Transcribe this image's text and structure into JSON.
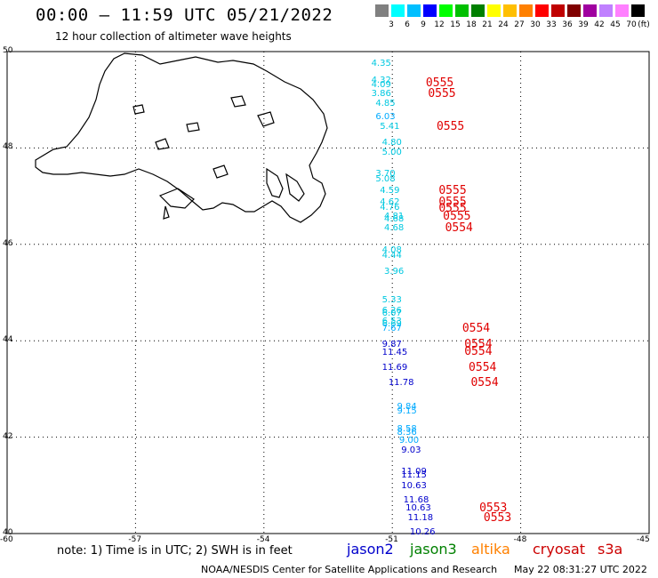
{
  "header": {
    "title": "00:00 – 11:59 UTC 05/21/2022",
    "subtitle": "12 hour collection of altimeter wave heights"
  },
  "colorbar": {
    "unit": "(ft)",
    "colors": [
      "#808080",
      "#00ffff",
      "#00bfff",
      "#0000ff",
      "#00ff00",
      "#00c000",
      "#008000",
      "#ffff00",
      "#ffbf00",
      "#ff8000",
      "#ff0000",
      "#c00000",
      "#800000",
      "#a000a0",
      "#c080ff",
      "#ff80ff",
      "#000000"
    ],
    "labels": [
      "3",
      "6",
      "9",
      "12",
      "15",
      "18",
      "21",
      "24",
      "27",
      "30",
      "33",
      "36",
      "39",
      "42",
      "45",
      "70"
    ]
  },
  "axes": {
    "lat_labels": [
      "50",
      "48",
      "46",
      "44",
      "42",
      "40"
    ],
    "lon_labels": [
      "-60",
      "-57",
      "-54",
      "-51",
      "-48",
      "-45"
    ]
  },
  "observations": [
    {
      "v": "4.35",
      "c": "#00c8e0",
      "lat": 49.74,
      "lon": -51.2
    },
    {
      "v": "4.32",
      "c": "#00c8e0",
      "lat": 49.4,
      "lon": -51.2
    },
    {
      "v": "4.09",
      "c": "#00c8e0",
      "lat": 49.3,
      "lon": -51.2
    },
    {
      "v": "3.86",
      "c": "#00c8e0",
      "lat": 49.12,
      "lon": -51.2
    },
    {
      "v": "4.85",
      "c": "#00c8e0",
      "lat": 48.92,
      "lon": -51.1
    },
    {
      "v": "6.03",
      "c": "#00aaff",
      "lat": 48.64,
      "lon": -51.1
    },
    {
      "v": "5.41",
      "c": "#00c8e0",
      "lat": 48.44,
      "lon": -51.0
    },
    {
      "v": "4.80",
      "c": "#00c8e0",
      "lat": 48.1,
      "lon": -50.95
    },
    {
      "v": "5.00",
      "c": "#00c8e0",
      "lat": 47.9,
      "lon": -50.95
    },
    {
      "v": "3.70",
      "c": "#00c8e0",
      "lat": 47.46,
      "lon": -51.1
    },
    {
      "v": "5.08",
      "c": "#00c8e0",
      "lat": 47.34,
      "lon": -51.1
    },
    {
      "v": "4.59",
      "c": "#00c8e0",
      "lat": 47.1,
      "lon": -51.0
    },
    {
      "v": "4.62",
      "c": "#00c8e0",
      "lat": 46.86,
      "lon": -51.0
    },
    {
      "v": "4.76",
      "c": "#00c8e0",
      "lat": 46.76,
      "lon": -51.0
    },
    {
      "v": "4.81",
      "c": "#00c8e0",
      "lat": 46.56,
      "lon": -50.9
    },
    {
      "v": "4.68",
      "c": "#00c8e0",
      "lat": 46.52,
      "lon": -50.9
    },
    {
      "v": "4.68",
      "c": "#00c8e0",
      "lat": 46.32,
      "lon": -50.9
    },
    {
      "v": "4.08",
      "c": "#00c8e0",
      "lat": 45.86,
      "lon": -50.95
    },
    {
      "v": "4.44",
      "c": "#00c8e0",
      "lat": 45.76,
      "lon": -50.95
    },
    {
      "v": "3.96",
      "c": "#00c8e0",
      "lat": 45.42,
      "lon": -50.9
    },
    {
      "v": "5.33",
      "c": "#00c8e0",
      "lat": 44.84,
      "lon": -50.95
    },
    {
      "v": "6.26",
      "c": "#00c8e0",
      "lat": 44.62,
      "lon": -50.95
    },
    {
      "v": "6.07",
      "c": "#00c8e0",
      "lat": 44.56,
      "lon": -50.95
    },
    {
      "v": "6.53",
      "c": "#00c8e0",
      "lat": 44.4,
      "lon": -50.95
    },
    {
      "v": "6.69",
      "c": "#00c8e0",
      "lat": 44.34,
      "lon": -50.95
    },
    {
      "v": "7.67",
      "c": "#00aaff",
      "lat": 44.24,
      "lon": -50.95
    },
    {
      "v": "9.87",
      "c": "#0000cc",
      "lat": 43.92,
      "lon": -50.95
    },
    {
      "v": "11.45",
      "c": "#0000cc",
      "lat": 43.74,
      "lon": -50.95
    },
    {
      "v": "11.69",
      "c": "#0000cc",
      "lat": 43.44,
      "lon": -50.95
    },
    {
      "v": "11.78",
      "c": "#0000cc",
      "lat": 43.12,
      "lon": -50.8
    },
    {
      "v": "9.84",
      "c": "#00aaff",
      "lat": 42.62,
      "lon": -50.6
    },
    {
      "v": "9.15",
      "c": "#00aaff",
      "lat": 42.52,
      "lon": -50.6
    },
    {
      "v": "8.58",
      "c": "#00aaff",
      "lat": 42.16,
      "lon": -50.6
    },
    {
      "v": "8.36",
      "c": "#00aaff",
      "lat": 42.08,
      "lon": -50.6
    },
    {
      "v": "9.00",
      "c": "#00aaff",
      "lat": 41.92,
      "lon": -50.55
    },
    {
      "v": "9.03",
      "c": "#0000cc",
      "lat": 41.72,
      "lon": -50.5
    },
    {
      "v": "11.09",
      "c": "#0000cc",
      "lat": 41.28,
      "lon": -50.5
    },
    {
      "v": "11.15",
      "c": "#0000cc",
      "lat": 41.2,
      "lon": -50.5
    },
    {
      "v": "10.63",
      "c": "#0000cc",
      "lat": 40.98,
      "lon": -50.5
    },
    {
      "v": "11.68",
      "c": "#0000cc",
      "lat": 40.68,
      "lon": -50.45
    },
    {
      "v": "10.63",
      "c": "#0000cc",
      "lat": 40.52,
      "lon": -50.4
    },
    {
      "v": "11.18",
      "c": "#0000cc",
      "lat": 40.32,
      "lon": -50.35
    },
    {
      "v": "10.26",
      "c": "#0000cc",
      "lat": 40.02,
      "lon": -50.3
    }
  ],
  "pass_ids": [
    {
      "t": "0555",
      "lat": 49.34,
      "lon": -50.05
    },
    {
      "t": "0555",
      "lat": 49.12,
      "lon": -50.0
    },
    {
      "t": "0555",
      "lat": 48.44,
      "lon": -49.8
    },
    {
      "t": "0555",
      "lat": 47.1,
      "lon": -49.75
    },
    {
      "t": "0555",
      "lat": 46.86,
      "lon": -49.75
    },
    {
      "t": "0555",
      "lat": 46.74,
      "lon": -49.75
    },
    {
      "t": "0555",
      "lat": 46.56,
      "lon": -49.65
    },
    {
      "t": "0554",
      "lat": 46.32,
      "lon": -49.6
    },
    {
      "t": "0554",
      "lat": 44.24,
      "lon": -49.2
    },
    {
      "t": "0554",
      "lat": 43.92,
      "lon": -49.15
    },
    {
      "t": "0554",
      "lat": 43.76,
      "lon": -49.15
    },
    {
      "t": "0554",
      "lat": 43.44,
      "lon": -49.05
    },
    {
      "t": "0554",
      "lat": 43.12,
      "lon": -49.0
    },
    {
      "t": "0553",
      "lat": 40.52,
      "lon": -48.8
    },
    {
      "t": "0553",
      "lat": 40.32,
      "lon": -48.7
    }
  ],
  "footer": {
    "note": "note:  1) Time is in UTC; 2) SWH is in feet",
    "credit": "NOAA/NESDIS Center for Satellite Applications and Research",
    "timestamp": "May 22 08:31:27 UTC 2022"
  },
  "satellites": [
    {
      "name": "jason2",
      "color": "#0000cc"
    },
    {
      "name": "jason3",
      "color": "#008000"
    },
    {
      "name": "altika",
      "color": "#ff8000"
    },
    {
      "name": "cryosat",
      "color": "#cc0000"
    },
    {
      "name": "s3a",
      "color": "#cc0000"
    }
  ]
}
